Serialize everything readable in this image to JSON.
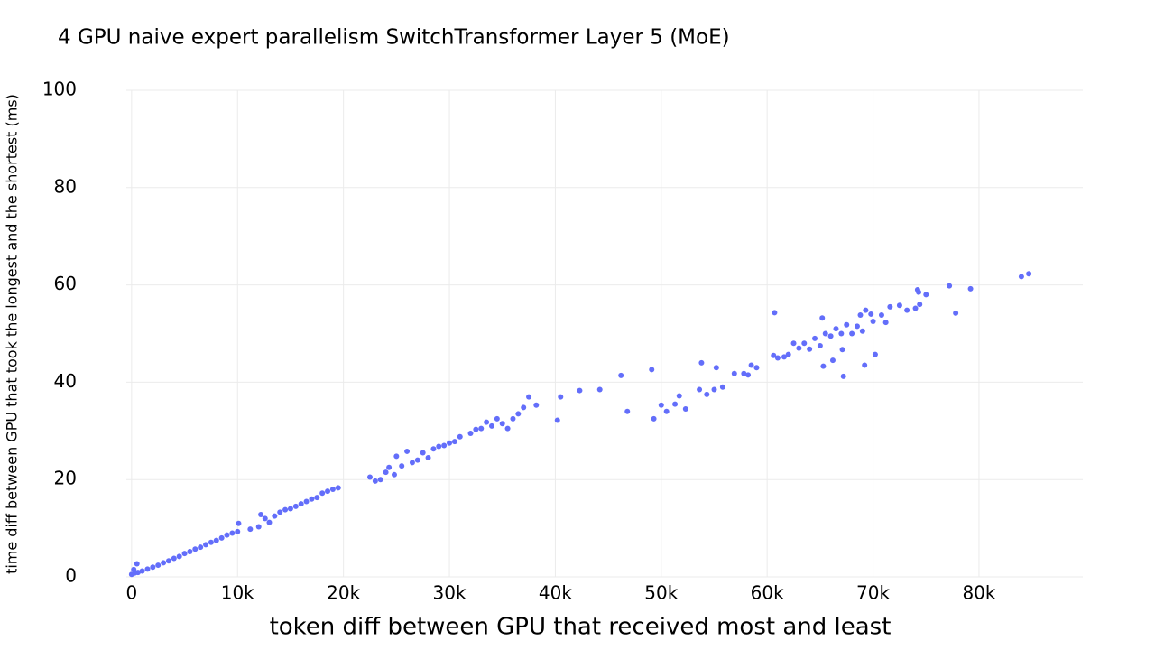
{
  "chart_data": {
    "type": "scatter",
    "title": "4 GPU naive expert parallelism SwitchTransformer Layer 5 (MoE)",
    "x_label": "token diff between GPU that received most and least",
    "y_label": "time diff between GPU that took the longest and the shortest (ms)",
    "color": "#636efa",
    "grid": true,
    "xlim": [
      -500,
      89800
    ],
    "ylim": [
      0,
      100
    ],
    "xticks": [
      0,
      {
        "value": 10000,
        "label": "10k"
      },
      {
        "value": 20000,
        "label": "20k"
      },
      {
        "value": 30000,
        "label": "30k"
      },
      {
        "value": 40000,
        "label": "40k"
      },
      {
        "value": 50000,
        "label": "50k"
      },
      {
        "value": 60000,
        "label": "60k"
      },
      {
        "value": 70000,
        "label": "70k"
      },
      {
        "value": 80000,
        "label": "80k"
      }
    ],
    "yticks": [
      0,
      20,
      40,
      60,
      80,
      100
    ],
    "x": [
      0,
      200,
      300,
      500,
      600,
      1000,
      1500,
      2000,
      2500,
      3000,
      3500,
      4000,
      4500,
      5000,
      5500,
      6000,
      6500,
      7000,
      7500,
      8000,
      8500,
      9000,
      9500,
      10000,
      10100,
      11200,
      12000,
      12200,
      12600,
      13000,
      13500,
      14000,
      14500,
      15000,
      15500,
      16000,
      16500,
      17000,
      17500,
      18000,
      18500,
      19000,
      19500,
      22500,
      23000,
      23500,
      24000,
      24300,
      24800,
      25000,
      25500,
      26000,
      26500,
      27000,
      27500,
      28000,
      28500,
      29000,
      29500,
      30000,
      30500,
      31000,
      32000,
      32500,
      33000,
      33500,
      34000,
      34500,
      35000,
      35500,
      36000,
      36500,
      37000,
      37500,
      38200,
      40200,
      40500,
      42300,
      44200,
      46200,
      46800,
      49100,
      49300,
      50000,
      50500,
      51300,
      51700,
      52300,
      53600,
      53800,
      54300,
      55000,
      55200,
      55800,
      56900,
      57800,
      58200,
      58500,
      59000,
      60600,
      60700,
      61000,
      61600,
      62000,
      62500,
      63000,
      63500,
      64000,
      64500,
      65000,
      65200,
      65300,
      65500,
      66000,
      66200,
      66500,
      67000,
      67100,
      67200,
      67500,
      68000,
      68500,
      68800,
      69000,
      69300,
      69200,
      69800,
      70000,
      70200,
      70800,
      71200,
      71600,
      72500,
      73200,
      74000,
      74200,
      74300,
      74400,
      75000,
      77200,
      77800,
      79200,
      84000,
      84700
    ],
    "values": [
      0.5,
      1.5,
      0.8,
      2.7,
      0.9,
      1.2,
      1.6,
      2.0,
      2.4,
      2.9,
      3.3,
      3.8,
      4.2,
      4.8,
      5.2,
      5.7,
      6.1,
      6.6,
      7.1,
      7.5,
      8.0,
      8.6,
      9.0,
      9.3,
      11.0,
      9.8,
      10.3,
      12.8,
      12.0,
      11.2,
      12.5,
      13.3,
      13.8,
      14.0,
      14.5,
      15.0,
      15.5,
      16.0,
      16.3,
      17.2,
      17.6,
      18.0,
      18.3,
      20.5,
      19.7,
      20.0,
      21.5,
      22.5,
      21.0,
      24.8,
      22.8,
      25.8,
      23.5,
      24.0,
      25.5,
      24.5,
      26.3,
      26.8,
      27.0,
      27.5,
      27.8,
      28.8,
      29.5,
      30.3,
      30.5,
      31.8,
      31.0,
      32.5,
      31.5,
      30.5,
      32.5,
      33.5,
      34.8,
      37.0,
      35.3,
      32.2,
      37.0,
      38.3,
      38.5,
      41.4,
      34.0,
      42.6,
      32.5,
      35.3,
      34.0,
      35.5,
      37.2,
      34.5,
      38.5,
      44.0,
      37.5,
      38.5,
      43.0,
      39.0,
      41.8,
      41.8,
      41.5,
      43.5,
      43.0,
      45.5,
      54.3,
      45.0,
      45.2,
      45.7,
      48.0,
      47.0,
      48.0,
      46.8,
      49.0,
      47.5,
      53.2,
      43.3,
      50.0,
      49.5,
      44.5,
      51.0,
      50.0,
      46.7,
      41.2,
      51.8,
      50.0,
      51.5,
      53.8,
      50.5,
      54.8,
      43.5,
      54.0,
      52.5,
      45.7,
      53.8,
      52.3,
      55.5,
      55.8,
      54.8,
      55.2,
      59.0,
      58.5,
      56.0,
      58.0,
      59.8,
      54.2,
      59.2,
      61.7,
      62.3
    ]
  }
}
